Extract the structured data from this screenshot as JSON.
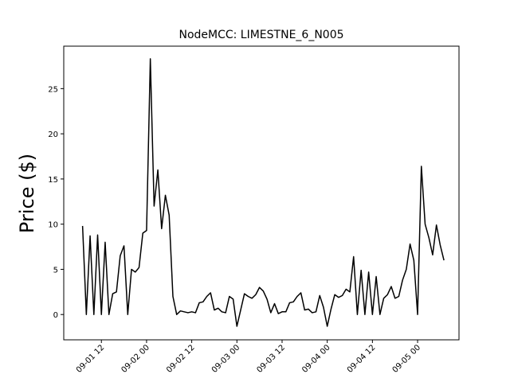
{
  "chart_data": {
    "type": "line",
    "title": "NodeMCC: LIMESTNE_6_N005",
    "y_label": "Price ($)",
    "x": [
      "09-01 07",
      "09-01 08",
      "09-01 09",
      "09-01 10",
      "09-01 11",
      "09-01 12",
      "09-01 13",
      "09-01 14",
      "09-01 15",
      "09-01 16",
      "09-01 17",
      "09-01 18",
      "09-01 19",
      "09-01 20",
      "09-01 21",
      "09-01 22",
      "09-01 23",
      "09-02 00",
      "09-02 01",
      "09-02 02",
      "09-02 03",
      "09-02 04",
      "09-02 05",
      "09-02 06",
      "09-02 07",
      "09-02 08",
      "09-02 09",
      "09-02 10",
      "09-02 11",
      "09-02 12",
      "09-02 13",
      "09-02 14",
      "09-02 15",
      "09-02 16",
      "09-02 17",
      "09-02 18",
      "09-02 19",
      "09-02 20",
      "09-02 21",
      "09-02 22",
      "09-02 23",
      "09-03 00",
      "09-03 01",
      "09-03 02",
      "09-03 03",
      "09-03 04",
      "09-03 05",
      "09-03 06",
      "09-03 07",
      "09-03 08",
      "09-03 09",
      "09-03 10",
      "09-03 11",
      "09-03 12",
      "09-03 13",
      "09-03 14",
      "09-03 15",
      "09-03 16",
      "09-03 17",
      "09-03 18",
      "09-03 19",
      "09-03 20",
      "09-03 21",
      "09-03 22",
      "09-03 23",
      "09-04 00",
      "09-04 01",
      "09-04 02",
      "09-04 03",
      "09-04 04",
      "09-04 05",
      "09-04 06",
      "09-04 07",
      "09-04 08",
      "09-04 09",
      "09-04 10",
      "09-04 11",
      "09-04 12",
      "09-04 13",
      "09-04 14",
      "09-04 15",
      "09-04 16",
      "09-04 17",
      "09-04 18",
      "09-04 19",
      "09-04 20",
      "09-04 21",
      "09-04 22",
      "09-04 23",
      "09-05 00",
      "09-05 01",
      "09-05 02",
      "09-05 03",
      "09-05 04",
      "09-05 05",
      "09-05 06",
      "09-05 07"
    ],
    "series": [
      {
        "color": "#000000",
        "values": [
          9.8,
          0,
          8.7,
          0,
          8.8,
          0,
          8,
          0,
          2.3,
          2.5,
          6.5,
          7.6,
          0,
          5,
          4.7,
          5.2,
          9,
          9.3,
          28.3,
          12,
          16,
          9.5,
          13.2,
          11,
          2,
          0,
          0.4,
          0.3,
          0.2,
          0.3,
          0.2,
          1.3,
          1.4,
          2,
          2.4,
          0.5,
          0.7,
          0.3,
          0.2,
          2,
          1.7,
          -1.3,
          0.5,
          2.3,
          2,
          1.8,
          2.2,
          3,
          2.6,
          1.7,
          0.2,
          1.2,
          0.1,
          0.3,
          0.3,
          1.3,
          1.4,
          2,
          2.4,
          0.5,
          0.6,
          0.2,
          0.3,
          2.1,
          0.8,
          -1.3,
          0.6,
          2.2,
          1.9,
          2.1,
          2.8,
          2.5,
          6.4,
          0,
          4.9,
          0,
          4.7,
          0,
          4.2,
          0,
          1.8,
          2.2,
          3.1,
          1.8,
          2,
          3.8,
          5,
          7.8,
          6,
          0,
          16.4,
          10,
          8.5,
          6.6,
          9.9,
          7.7,
          6
        ]
      }
    ],
    "xlim": [
      "09-01 02",
      "09-05 11"
    ],
    "xticks": [
      "09-01 12",
      "09-02 00",
      "09-02 12",
      "09-03 00",
      "09-03 12",
      "09-04 00",
      "09-04 12",
      "09-05 00"
    ],
    "ylim": [
      -2.8,
      29.7
    ],
    "yticks": [
      0,
      5,
      10,
      15,
      20,
      25
    ]
  }
}
